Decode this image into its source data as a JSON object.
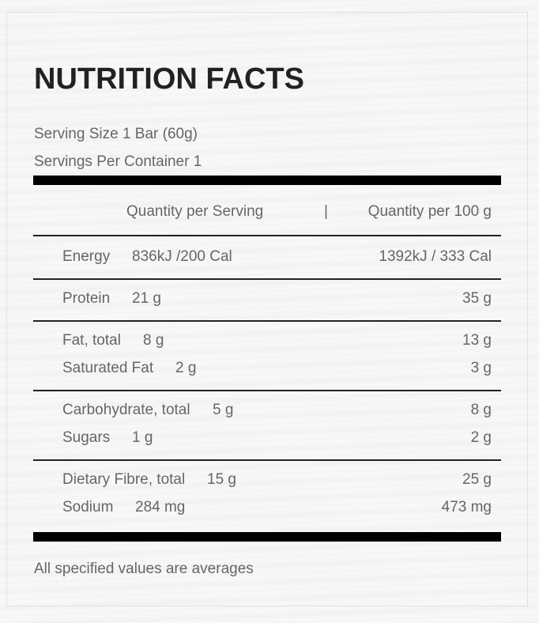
{
  "title": "NUTRITION FACTS",
  "serving_size": "Serving Size 1 Bar (60g)",
  "servings_per_container": "Servings Per Container 1",
  "columns": {
    "per_serving": "Quantity per Serving",
    "separator": "|",
    "per_100g": "Quantity per 100 g"
  },
  "groups": [
    [
      {
        "name": "Energy",
        "per_serving": "836kJ /200 Cal",
        "per_100g": "1392kJ / 333 Cal"
      }
    ],
    [
      {
        "name": "Protein",
        "per_serving": "21 g",
        "per_100g": "35 g"
      }
    ],
    [
      {
        "name": "Fat, total",
        "per_serving": "8 g",
        "per_100g": "13 g"
      },
      {
        "name": "Saturated Fat",
        "per_serving": "2 g",
        "per_100g": "3 g"
      }
    ],
    [
      {
        "name": "Carbohydrate, total",
        "per_serving": "5 g",
        "per_100g": "8 g"
      },
      {
        "name": "Sugars",
        "per_serving": "1 g",
        "per_100g": "2 g"
      }
    ],
    [
      {
        "name": "Dietary Fibre, total",
        "per_serving": "15 g",
        "per_100g": "25 g"
      },
      {
        "name": "Sodium",
        "per_serving": "284 mg",
        "per_100g": "473 mg"
      }
    ]
  ],
  "footnote": "All specified values are averages"
}
